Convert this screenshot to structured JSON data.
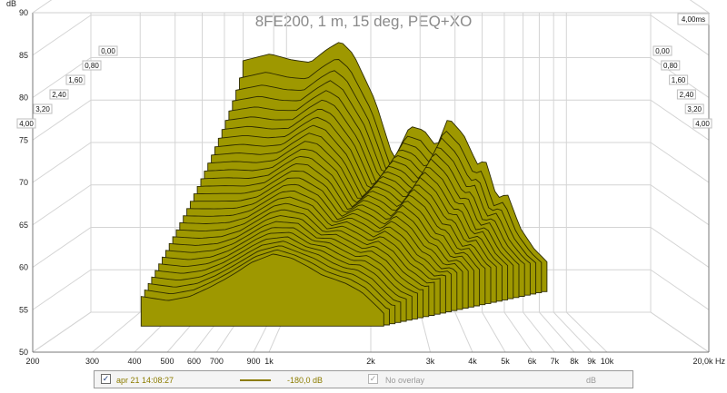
{
  "chart_data": {
    "type": "area",
    "title": "8FE200, 1 m, 15 deg, PEQ+XO",
    "y_unit": "dB",
    "x_unit": "Hz",
    "time_unit": "ms",
    "ylim": [
      50,
      90
    ],
    "y_ticks": [
      "90",
      "85",
      "80",
      "75",
      "70",
      "65",
      "60",
      "55",
      "50"
    ],
    "x_scale": "log",
    "xlim": [
      200,
      20000
    ],
    "x_ticks": [
      {
        "label": "200",
        "value": 200
      },
      {
        "label": "300",
        "value": 300
      },
      {
        "label": "400",
        "value": 400
      },
      {
        "label": "500",
        "value": 500
      },
      {
        "label": "600",
        "value": 600
      },
      {
        "label": "700",
        "value": 700
      },
      {
        "label": "900",
        "value": 900
      },
      {
        "label": "1k",
        "value": 1000
      },
      {
        "label": "2k",
        "value": 2000
      },
      {
        "label": "3k",
        "value": 3000
      },
      {
        "label": "4k",
        "value": 4000
      },
      {
        "label": "5k",
        "value": 5000
      },
      {
        "label": "6k",
        "value": 6000
      },
      {
        "label": "7k",
        "value": 7000
      },
      {
        "label": "8k",
        "value": 8000
      },
      {
        "label": "9k",
        "value": 9000
      },
      {
        "label": "10k",
        "value": 10000
      },
      {
        "label": "20,0k Hz",
        "value": 20000
      }
    ],
    "time_ticks": [
      "0,00",
      "0,80",
      "1,60",
      "2,40",
      "3,20",
      "4,00"
    ],
    "time_max_label": "4,00ms",
    "fill_color": "#9e9800",
    "stroke_color": "#2c2a00",
    "grid": true,
    "waterfall": {
      "slice_count": 30,
      "time_start_ms": 0,
      "time_end_ms": 4.0,
      "freq_start": 400,
      "first_slice": {
        "freq": [
          400,
          500,
          600,
          700,
          800,
          900,
          1000,
          1200,
          1400,
          1600,
          1800,
          2000,
          2200,
          2500,
          2800,
          3000,
          3300,
          3600,
          4000,
          4500,
          5000
        ],
        "db": [
          80.7,
          81.5,
          80.8,
          80.5,
          82.0,
          83.0,
          81.5,
          76.0,
          69.0,
          73.0,
          72.5,
          70.5,
          74.0,
          72.0,
          68.5,
          69.0,
          64.5,
          65.0,
          61.0,
          58.5,
          57.0
        ]
      },
      "last_slice": {
        "freq": [
          400,
          500,
          600,
          700,
          800,
          900,
          1000,
          1200,
          1400,
          1600,
          1800,
          2000,
          2200,
          2500,
          2800,
          3000
        ],
        "db": [
          57.0,
          56.5,
          57.0,
          58.0,
          59.0,
          60.0,
          61.0,
          62.0,
          61.5,
          60.5,
          59.5,
          59.0,
          58.5,
          57.5,
          56.0,
          55.0
        ]
      }
    }
  },
  "legend": {
    "checked_mark": "✓",
    "measurement_label": "apr 21 14:08:27",
    "level_label": "-180,0 dB",
    "overlay_label": "No overlay",
    "unit_label": "dB",
    "line_color": "#8c7c00"
  }
}
